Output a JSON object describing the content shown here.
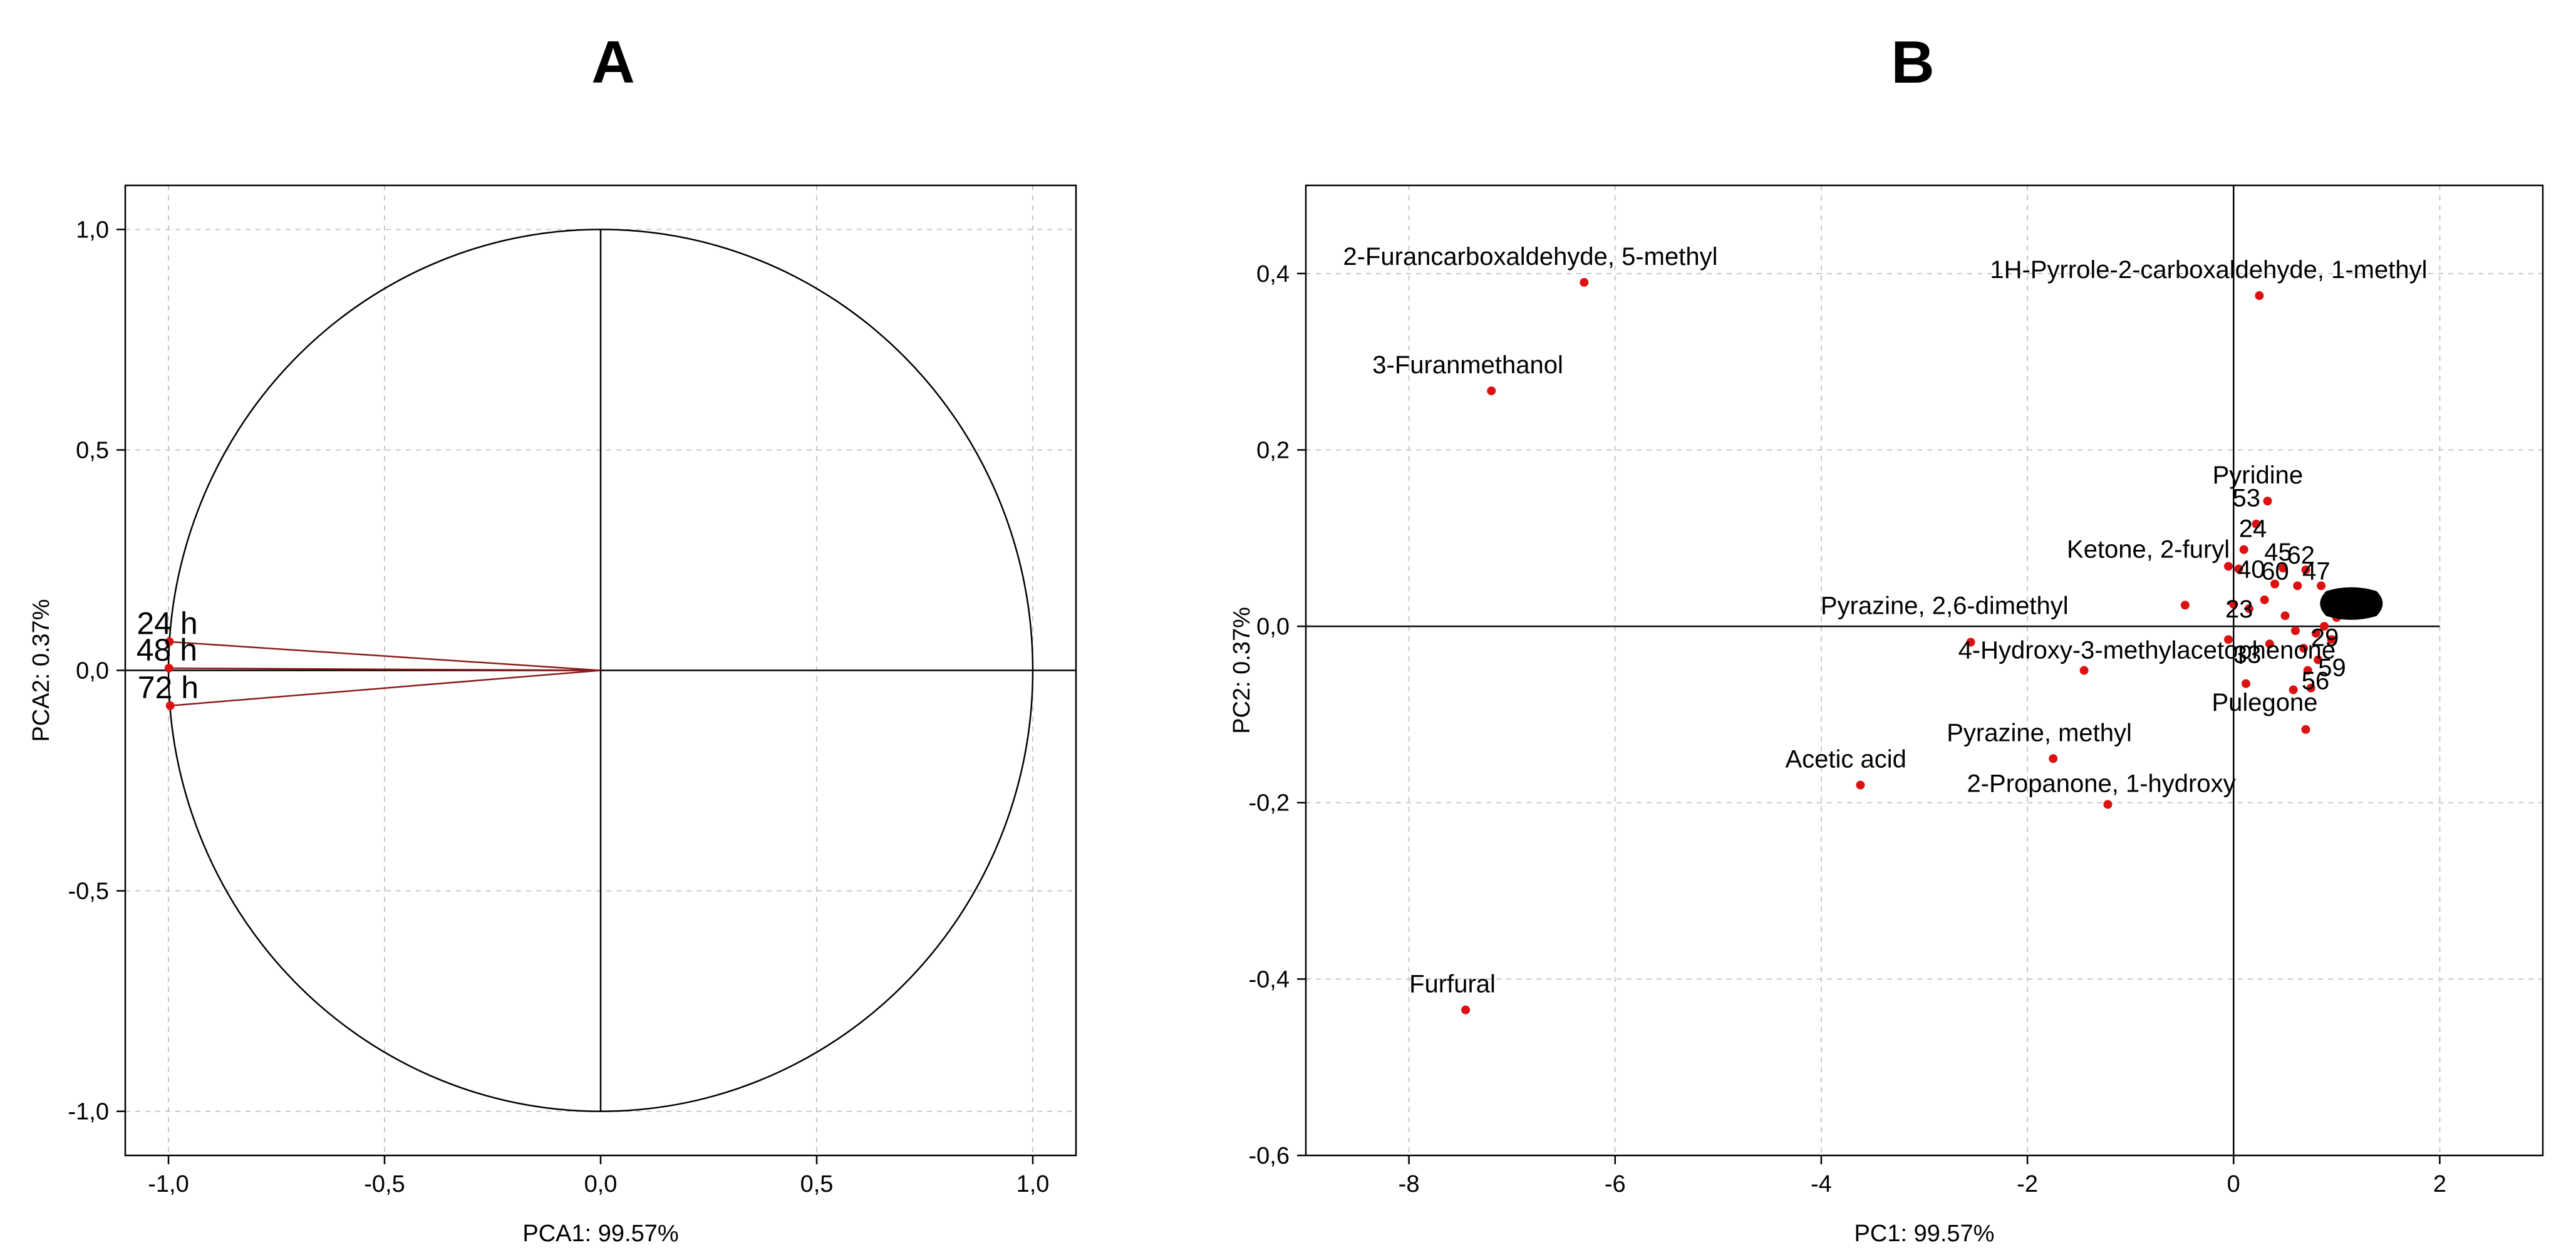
{
  "chart_data": [
    {
      "type": "scatter",
      "panel": "A",
      "xlabel": "PCA1: 99.57%",
      "ylabel": "PCA2: 0.37%",
      "xlim": [
        -1.1,
        1.1
      ],
      "ylim": [
        -1.1,
        1.1
      ],
      "xticks": [
        -1.0,
        -0.5,
        0.0,
        0.5,
        1.0
      ],
      "yticks": [
        -1.0,
        -0.5,
        0.0,
        0.5,
        1.0
      ],
      "xtick_labels": [
        "-1,0",
        "-0,5",
        "0,0",
        "0,5",
        "1,0"
      ],
      "ytick_labels": [
        "-1,0",
        "-0,5",
        "0,0",
        "0,5",
        "1,0"
      ],
      "grid": true,
      "unit_circle": true,
      "vectors": [
        {
          "label": "24 h",
          "x": -0.998,
          "y": 0.065
        },
        {
          "label": "48 h",
          "x": -0.999,
          "y": 0.005
        },
        {
          "label": "72 h",
          "x": -0.996,
          "y": -0.08
        }
      ],
      "colors": {
        "vector": "#8b1a1a",
        "marker": "#dd1111",
        "axes": "#000000",
        "grid": "#c8c8c8"
      }
    },
    {
      "type": "scatter",
      "panel": "B",
      "xlabel": "PC1: 99.57%",
      "ylabel": "PC2: 0.37%",
      "xlim": [
        -9.0,
        3.0
      ],
      "ylim": [
        -0.6,
        0.5
      ],
      "xticks": [
        -8,
        -6,
        -4,
        -2,
        0,
        2
      ],
      "yticks": [
        -0.6,
        -0.4,
        -0.2,
        0.0,
        0.2,
        0.4
      ],
      "xtick_labels": [
        "-8",
        "-6",
        "-4",
        "-2",
        "0",
        "2"
      ],
      "ytick_labels": [
        "-0,6",
        "-0,4",
        "-0,2",
        "0,0",
        "0,2",
        "0,4"
      ],
      "grid": true,
      "points": [
        {
          "label": "2-Furancarboxaldehyde, 5-methyl",
          "x": -6.3,
          "y": 0.39
        },
        {
          "label": "1H-Pyrrole-2-carboxaldehyde, 1-methyl",
          "x": 0.25,
          "y": 0.375
        },
        {
          "label": "3-Furanmethanol",
          "x": -7.2,
          "y": 0.267
        },
        {
          "label": "Pyridine",
          "x": 0.33,
          "y": 0.142
        },
        {
          "label": "53",
          "x": 0.22,
          "y": 0.116
        },
        {
          "label": "24",
          "x": 0.1,
          "y": 0.087
        },
        {
          "label": "45",
          "x": 0.48,
          "y": 0.066
        },
        {
          "label": "62",
          "x": 0.7,
          "y": 0.064
        },
        {
          "label": "Ketone, 2-furyl",
          "x": -0.05,
          "y": 0.068
        },
        {
          "label": "40",
          "x": 0.4,
          "y": 0.048
        },
        {
          "label": "60",
          "x": 0.62,
          "y": 0.046
        },
        {
          "label": "47",
          "x": 0.85,
          "y": 0.046
        },
        {
          "label": "Pyrazine, 2,6-dimethyl",
          "x": -0.47,
          "y": 0.024
        },
        {
          "label": "23",
          "x": 0.15,
          "y": 0.02
        },
        {
          "label": "4-Hydroxy-3-methylacetophenone",
          "x": -2.55,
          "y": -0.018
        },
        {
          "label": "33",
          "x": 0.35,
          "y": -0.02
        },
        {
          "label": "29",
          "x": 0.8,
          "y": -0.008
        },
        {
          "label": "59",
          "x": 0.82,
          "y": -0.038
        },
        {
          "label": "56",
          "x": 0.72,
          "y": -0.05
        },
        {
          "label": "",
          "x": -1.45,
          "y": -0.05
        },
        {
          "label": "Pulegone",
          "x": 0.7,
          "y": -0.117
        },
        {
          "label": "Pyrazine, methyl",
          "x": -1.75,
          "y": -0.15
        },
        {
          "label": "Acetic acid",
          "x": -3.62,
          "y": -0.18
        },
        {
          "label": "2-Propanone, 1-hydroxy",
          "x": -1.22,
          "y": -0.202
        },
        {
          "label": "Furfural",
          "x": -7.45,
          "y": -0.435
        },
        {
          "label": "",
          "x": 0.05,
          "y": 0.065
        },
        {
          "label": "",
          "x": 0.0,
          "y": 0.025
        },
        {
          "label": "",
          "x": -0.05,
          "y": -0.015
        },
        {
          "label": "",
          "x": 0.12,
          "y": -0.065
        },
        {
          "label": "",
          "x": 0.3,
          "y": 0.03
        },
        {
          "label": "",
          "x": 0.5,
          "y": 0.012
        },
        {
          "label": "",
          "x": 0.6,
          "y": -0.005
        },
        {
          "label": "",
          "x": 0.68,
          "y": -0.025
        },
        {
          "label": "",
          "x": 0.58,
          "y": -0.072
        },
        {
          "label": "",
          "x": 0.75,
          "y": -0.07
        },
        {
          "label": "",
          "x": 0.92,
          "y": 0.02
        },
        {
          "label": "",
          "x": 1.0,
          "y": 0.01
        },
        {
          "label": "",
          "x": 0.95,
          "y": -0.015
        },
        {
          "label": "",
          "x": 1.02,
          "y": 0.03
        },
        {
          "label": "",
          "x": 0.88,
          "y": 0.0
        }
      ],
      "colors": {
        "marker": "#dd1111",
        "axes": "#000000",
        "grid": "#c8c8c8"
      }
    }
  ]
}
